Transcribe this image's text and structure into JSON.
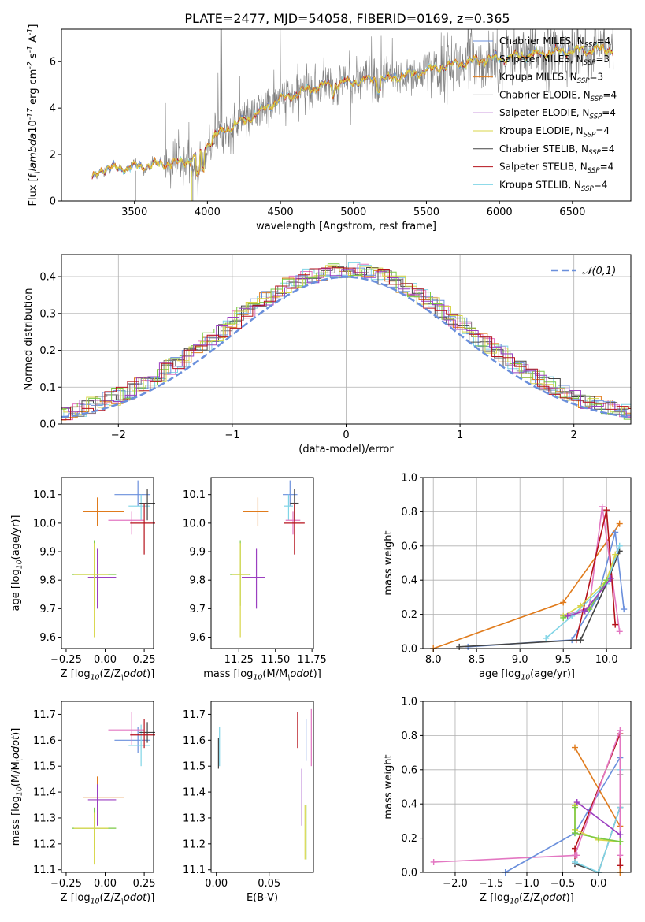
{
  "title": "PLATE=2477, MJD=54058, FIBERID=0169, z=0.365",
  "series": [
    {
      "name": "Chabrier MILES, N$_{SSP}$=4",
      "color": "#6a8fdc"
    },
    {
      "name": "Salpeter MILES, N$_{SSP}$=3",
      "color": "#aaaaaa"
    },
    {
      "name": "Kroupa MILES, N$_{SSP}$=3",
      "color": "#e07b1c"
    },
    {
      "name": "Chabrier ELODIE, N$_{SSP}$=4",
      "color": "#7f7f7f"
    },
    {
      "name": "Salpeter ELODIE, N$_{SSP}$=4",
      "color": "#9b3fc0"
    },
    {
      "name": "Kroupa ELODIE, N$_{SSP}$=4",
      "color": "#d8d64a"
    },
    {
      "name": "Chabrier STELIB, N$_{SSP}$=4",
      "color": "#444444"
    },
    {
      "name": "Salpeter STELIB, N$_{SSP}$=4",
      "color": "#b5121b"
    },
    {
      "name": "Kroupa STELIB, N$_{SSP}$=4",
      "color": "#7fd4e6"
    }
  ],
  "extra_colors": {
    "pink": "#e377c2",
    "green": "#7ac943"
  },
  "chart_data": [
    {
      "type": "line",
      "xlabel": "wavelength [Angstrom, rest frame]",
      "ylabel": "Flux [f$_\\lambda$10$^{-17}$ erg cm$^{-2}$ s$^{-1}$ A$^{-1}$]",
      "xlim": [
        3000,
        6900
      ],
      "ylim": [
        0,
        7.4
      ],
      "xticks": [
        3500,
        4000,
        4500,
        5000,
        5500,
        6000,
        6500
      ],
      "yticks": [
        0,
        2,
        4,
        6
      ],
      "data_range": [
        3210,
        6780
      ],
      "continuum_x": [
        3210,
        3280,
        3400,
        3550,
        3700,
        3850,
        3950,
        4050,
        4200,
        4350,
        4500,
        4650,
        4800,
        4950,
        5100,
        5250,
        5400,
        5550,
        5700,
        5850,
        6000,
        6150,
        6300,
        6450,
        6600,
        6780
      ],
      "continuum_y": [
        0.9,
        1.4,
        1.4,
        1.5,
        1.6,
        1.7,
        2.0,
        2.8,
        3.3,
        3.8,
        4.4,
        4.7,
        5.0,
        5.1,
        5.2,
        5.3,
        5.45,
        5.7,
        5.9,
        6.05,
        6.15,
        6.25,
        6.35,
        6.45,
        6.5,
        6.55
      ],
      "legend_position": "upper right"
    },
    {
      "type": "histogram",
      "xlabel": "(data-model)/error",
      "ylabel": "Normed distribution",
      "xlim": [
        -2.5,
        2.5
      ],
      "ylim": [
        0,
        0.46
      ],
      "xticks": [
        -2,
        -1,
        0,
        1,
        2
      ],
      "yticks": [
        0.0,
        0.1,
        0.2,
        0.3,
        0.4
      ],
      "grid": true,
      "bin_width": 0.1,
      "reference_curve": {
        "name": "$\\mathcal{N}(0,1)$",
        "type": "normal",
        "mean": 0,
        "std": 1,
        "color": "#6a8fdc"
      },
      "legend_position": "upper right"
    },
    {
      "type": "errorbar",
      "xlabel": "Z [log$_{10}$(Z/Z$_\\odot$)]",
      "ylabel": "age  [log$_{10}$(age/yr)]",
      "xlim": [
        -0.28,
        0.31
      ],
      "ylim": [
        9.56,
        10.16
      ],
      "xticks": [
        -0.25,
        0.0,
        0.25
      ],
      "yticks": [
        9.6,
        9.7,
        9.8,
        9.9,
        10.0,
        10.1
      ],
      "points": [
        {
          "c": 0,
          "x": 0.21,
          "y": 10.1,
          "dx": [
            0.15,
            0.08
          ],
          "dy": [
            0.04,
            0.05
          ]
        },
        {
          "c": 8,
          "x": 0.23,
          "y": 10.06,
          "dx": [
            0.08,
            0.06
          ],
          "dy": [
            0.05,
            0.04
          ]
        },
        {
          "c": 2,
          "x": -0.05,
          "y": 10.04,
          "dx": [
            0.09,
            0.17
          ],
          "dy": [
            0.05,
            0.05
          ]
        },
        {
          "c": 6,
          "x": 0.27,
          "y": 10.07,
          "dx": [
            0.05,
            0.05
          ],
          "dy": [
            0.06,
            0.05
          ]
        },
        {
          "c": 9,
          "x": 0.17,
          "y": 10.01,
          "dx": [
            0.15,
            0.08
          ],
          "dy": [
            0.05,
            0.03
          ]
        },
        {
          "c": 7,
          "x": 0.25,
          "y": 10.0,
          "dx": [
            0.09,
            0.07
          ],
          "dy": [
            0.11,
            0.07
          ]
        },
        {
          "c": 10,
          "x": -0.07,
          "y": 9.82,
          "dx": [
            0.14,
            0.14
          ],
          "dy": [
            0.11,
            0.12
          ]
        },
        {
          "c": 4,
          "x": -0.05,
          "y": 9.81,
          "dx": [
            0.06,
            0.12
          ],
          "dy": [
            0.11,
            0.1
          ]
        },
        {
          "c": 5,
          "x": -0.07,
          "y": 9.82,
          "dx": [
            0.13,
            0.09
          ],
          "dy": [
            0.22,
            0.11
          ]
        }
      ]
    },
    {
      "type": "errorbar",
      "xlabel": "mass [log$_{10}$(M/M$_\\odot$)]",
      "ylabel": "",
      "xlim": [
        11.06,
        11.76
      ],
      "ylim": [
        9.56,
        10.16
      ],
      "xticks": [
        11.25,
        11.5,
        11.75
      ],
      "yticks": [
        9.6,
        9.7,
        9.8,
        9.9,
        10.0,
        10.1
      ],
      "points": [
        {
          "c": 0,
          "x": 11.6,
          "y": 10.1,
          "dx": [
            0.05,
            0.05
          ],
          "dy": [
            0.04,
            0.05
          ]
        },
        {
          "c": 8,
          "x": 11.59,
          "y": 10.06,
          "dx": [
            0.03,
            0.03
          ],
          "dy": [
            0.05,
            0.04
          ]
        },
        {
          "c": 2,
          "x": 11.38,
          "y": 10.04,
          "dx": [
            0.1,
            0.07
          ],
          "dy": [
            0.05,
            0.05
          ]
        },
        {
          "c": 6,
          "x": 11.63,
          "y": 10.07,
          "dx": [
            0.03,
            0.03
          ],
          "dy": [
            0.06,
            0.05
          ]
        },
        {
          "c": 9,
          "x": 11.62,
          "y": 10.01,
          "dx": [
            0.05,
            0.05
          ],
          "dy": [
            0.05,
            0.03
          ]
        },
        {
          "c": 7,
          "x": 11.63,
          "y": 10.0,
          "dx": [
            0.07,
            0.07
          ],
          "dy": [
            0.11,
            0.07
          ]
        },
        {
          "c": 10,
          "x": 11.26,
          "y": 9.82,
          "dx": [
            0.07,
            0.07
          ],
          "dy": [
            0.11,
            0.12
          ]
        },
        {
          "c": 4,
          "x": 11.37,
          "y": 9.81,
          "dx": [
            0.1,
            0.06
          ],
          "dy": [
            0.11,
            0.1
          ]
        },
        {
          "c": 5,
          "x": 11.26,
          "y": 9.82,
          "dx": [
            0.06,
            0.06
          ],
          "dy": [
            0.22,
            0.11
          ]
        }
      ]
    },
    {
      "type": "line",
      "xlabel": "age  [log$_{10}$(age/yr)]",
      "ylabel": "mass weight",
      "xlim": [
        7.88,
        10.28
      ],
      "ylim": [
        0,
        1.0
      ],
      "xticks": [
        8.0,
        8.5,
        9.0,
        9.5,
        10.0
      ],
      "yticks": [
        0.0,
        0.2,
        0.4,
        0.6,
        0.8,
        1.0
      ],
      "grid": true,
      "lines": [
        {
          "c": 2,
          "x": [
            8.0,
            9.5,
            10.15
          ],
          "y": [
            0.0,
            0.27,
            0.73
          ]
        },
        {
          "c": 0,
          "x": [
            8.4,
            9.6,
            9.9,
            10.1,
            10.2
          ],
          "y": [
            0.01,
            0.05,
            0.3,
            0.68,
            0.23
          ]
        },
        {
          "c": 9,
          "x": [
            9.5,
            9.8,
            9.95,
            10.15
          ],
          "y": [
            0.19,
            0.24,
            0.83,
            0.1
          ]
        },
        {
          "c": 7,
          "x": [
            9.65,
            10.0,
            10.1
          ],
          "y": [
            0.05,
            0.81,
            0.14
          ]
        },
        {
          "c": 6,
          "x": [
            8.3,
            9.7,
            10.0,
            10.15
          ],
          "y": [
            0.01,
            0.05,
            0.38,
            0.57
          ]
        },
        {
          "c": 8,
          "x": [
            9.3,
            9.6,
            10.0,
            10.15
          ],
          "y": [
            0.06,
            0.19,
            0.38,
            0.6
          ]
        },
        {
          "c": 5,
          "x": [
            9.5,
            9.7,
            10.0,
            10.1
          ],
          "y": [
            0.19,
            0.25,
            0.4,
            0.55
          ]
        },
        {
          "c": 10,
          "x": [
            9.5,
            9.8,
            10.0
          ],
          "y": [
            0.18,
            0.23,
            0.4
          ]
        },
        {
          "c": 4,
          "x": [
            9.55,
            9.75,
            10.05
          ],
          "y": [
            0.19,
            0.22,
            0.41
          ]
        }
      ]
    },
    {
      "type": "errorbar",
      "xlabel": "Z [log$_{10}$(Z/Z$_\\odot$)]",
      "ylabel": "mass [log$_{10}$(M/M$_\\odot$)]",
      "xlim": [
        -0.28,
        0.31
      ],
      "ylim": [
        11.09,
        11.75
      ],
      "xticks": [
        -0.25,
        0.0,
        0.25
      ],
      "yticks": [
        11.1,
        11.2,
        11.3,
        11.4,
        11.5,
        11.6,
        11.7
      ],
      "points": [
        {
          "c": 0,
          "x": 0.21,
          "y": 11.6,
          "dx": [
            0.15,
            0.08
          ],
          "dy": [
            0.05,
            0.05
          ]
        },
        {
          "c": 8,
          "x": 0.23,
          "y": 11.58,
          "dx": [
            0.08,
            0.06
          ],
          "dy": [
            0.08,
            0.08
          ]
        },
        {
          "c": 2,
          "x": -0.05,
          "y": 11.38,
          "dx": [
            0.09,
            0.17
          ],
          "dy": [
            0.1,
            0.08
          ]
        },
        {
          "c": 6,
          "x": 0.27,
          "y": 11.63,
          "dx": [
            0.05,
            0.05
          ],
          "dy": [
            0.04,
            0.04
          ]
        },
        {
          "c": 9,
          "x": 0.17,
          "y": 11.64,
          "dx": [
            0.15,
            0.08
          ],
          "dy": [
            0.06,
            0.07
          ]
        },
        {
          "c": 7,
          "x": 0.25,
          "y": 11.62,
          "dx": [
            0.09,
            0.07
          ],
          "dy": [
            0.05,
            0.06
          ]
        },
        {
          "c": 10,
          "x": -0.07,
          "y": 11.26,
          "dx": [
            0.14,
            0.14
          ],
          "dy": [
            0.08,
            0.08
          ]
        },
        {
          "c": 4,
          "x": -0.05,
          "y": 11.37,
          "dx": [
            0.06,
            0.12
          ],
          "dy": [
            0.1,
            0.06
          ]
        },
        {
          "c": 5,
          "x": -0.07,
          "y": 11.26,
          "dx": [
            0.13,
            0.09
          ],
          "dy": [
            0.14,
            0.06
          ]
        }
      ]
    },
    {
      "type": "errorbar",
      "xlabel": "E(B-V)",
      "ylabel": "",
      "xlim": [
        -0.005,
        0.092
      ],
      "ylim": [
        11.09,
        11.75
      ],
      "xticks": [
        0.0,
        0.05
      ],
      "yticks": [
        11.1,
        11.2,
        11.3,
        11.4,
        11.5,
        11.6,
        11.7
      ],
      "points": [
        {
          "c": 0,
          "x": 0.085,
          "y": 11.6,
          "dx": [
            0,
            0
          ],
          "dy": [
            0.08,
            0.08
          ]
        },
        {
          "c": 8,
          "x": 0.003,
          "y": 11.58,
          "dx": [
            0,
            0
          ],
          "dy": [
            0.08,
            0.07
          ]
        },
        {
          "c": 6,
          "x": 0.002,
          "y": 11.55,
          "dx": [
            0,
            0
          ],
          "dy": [
            0.06,
            0.06
          ]
        },
        {
          "c": 9,
          "x": 0.09,
          "y": 11.63,
          "dx": [
            0,
            0
          ],
          "dy": [
            0.13,
            0.09
          ]
        },
        {
          "c": 7,
          "x": 0.077,
          "y": 11.62,
          "dx": [
            0,
            0
          ],
          "dy": [
            0.05,
            0.09
          ]
        },
        {
          "c": 4,
          "x": 0.081,
          "y": 11.37,
          "dx": [
            0,
            0
          ],
          "dy": [
            0.1,
            0.12
          ]
        },
        {
          "c": 5,
          "x": 0.084,
          "y": 11.26,
          "dx": [
            0,
            0
          ],
          "dy": [
            0.12,
            0.09
          ]
        },
        {
          "c": 10,
          "x": 0.085,
          "y": 11.26,
          "dx": [
            0,
            0
          ],
          "dy": [
            0.12,
            0.09
          ]
        }
      ]
    },
    {
      "type": "line",
      "xlabel": "Z [log$_{10}$(Z/Z$_\\odot$)]",
      "ylabel": "mass weight",
      "xlim": [
        -2.45,
        0.45
      ],
      "ylim": [
        0,
        1.0
      ],
      "xticks": [
        -2.0,
        -1.5,
        -1.0,
        -0.5,
        0.0
      ],
      "yticks": [
        0.0,
        0.2,
        0.4,
        0.6,
        0.8,
        1.0
      ],
      "grid": true,
      "lines": [
        {
          "c": 9,
          "x": [
            -2.3,
            -0.3
          ],
          "y": [
            0.06,
            0.1
          ]
        },
        {
          "c": 0,
          "x": [
            -1.3,
            -0.33,
            0.3
          ],
          "y": [
            0.0,
            0.23,
            0.67
          ]
        },
        {
          "c": 2,
          "x": [
            -0.33,
            0.3,
            0.3
          ],
          "y": [
            0.73,
            0.27,
            0.0
          ]
        },
        {
          "c": 7,
          "x": [
            -0.33,
            -0.33,
            0.3,
            0.3
          ],
          "y": [
            0.05,
            0.14,
            0.81,
            0.04
          ]
        },
        {
          "c": 6,
          "x": [
            -0.33,
            0.0,
            0.3,
            0.3
          ],
          "y": [
            0.05,
            0.0,
            0.38,
            0.57
          ]
        },
        {
          "c": 8,
          "x": [
            -0.33,
            0.0,
            0.3,
            0.3
          ],
          "y": [
            0.06,
            0.0,
            0.38,
            0.6
          ]
        },
        {
          "c": 9,
          "x": [
            -0.33,
            0.3,
            0.3
          ],
          "y": [
            0.1,
            0.83,
            0.1
          ]
        },
        {
          "c": 5,
          "x": [
            -0.33,
            -0.33,
            0.0,
            0.3
          ],
          "y": [
            0.39,
            0.25,
            0.19,
            0.18
          ]
        },
        {
          "c": 10,
          "x": [
            -0.33,
            -0.33,
            0.0,
            0.3
          ],
          "y": [
            0.38,
            0.23,
            0.2,
            0.18
          ]
        },
        {
          "c": 4,
          "x": [
            -0.3,
            0.3
          ],
          "y": [
            0.41,
            0.22
          ]
        }
      ]
    }
  ]
}
